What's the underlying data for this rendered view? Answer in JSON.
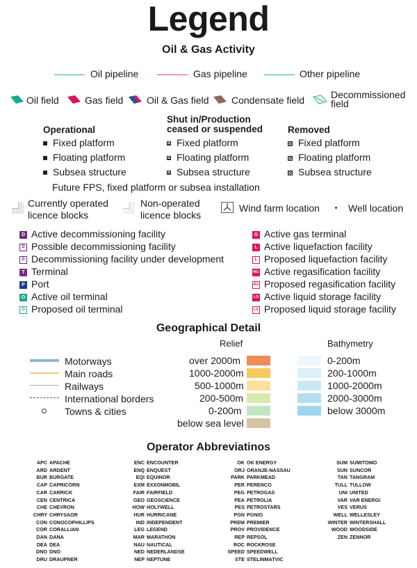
{
  "title": "Legend",
  "oil_gas_heading": "Oil & Gas Activity",
  "pipelines": [
    {
      "label": "Oil pipeline",
      "color": "#2ab5a5"
    },
    {
      "label": "Gas pipeline",
      "color": "#e0447a"
    },
    {
      "label": "Other pipeline",
      "color": "#2ab5a5"
    }
  ],
  "fields": [
    {
      "label": "Oil field",
      "color": "#1fa890"
    },
    {
      "label": "Gas field",
      "color": "#d9155d"
    },
    {
      "label": "Oil & Gas field",
      "color": "#7a3a8c"
    },
    {
      "label": "Condensate field",
      "color": "#8c6a5a"
    },
    {
      "label": "Decommissioned field",
      "color": "#1fa890"
    }
  ],
  "status_columns": [
    {
      "heading": "Operational",
      "items": [
        "Fixed platform",
        "Floating platform",
        "Subsea structure"
      ]
    },
    {
      "heading": "Shut in/Production ceased or suspended",
      "items": [
        "Fixed platform",
        "Floating platform",
        "Subsea structure"
      ]
    },
    {
      "heading": "Removed",
      "items": [
        "Fixed platform",
        "Floating platform",
        "Subsea structure"
      ]
    }
  ],
  "future_note": "Future FPS, fixed platform or subsea installation",
  "licence": {
    "current": "Currently operated licence blocks",
    "non_operated": "Non-operated licence blocks",
    "wind_farm": "Wind farm location",
    "well": "Well location"
  },
  "facilities_left": [
    {
      "code": "D",
      "label": "Active decommissioning facility",
      "color": "#6b2a7a",
      "outline": false
    },
    {
      "code": "D",
      "label": "Possible decommissioning facility",
      "color": "#6b2a7a",
      "outline": true
    },
    {
      "code": "D",
      "label": "Decommissioning facility under development",
      "color": "#6b2a7a",
      "outline": true
    },
    {
      "code": "T",
      "label": "Terminal",
      "color": "#7a2a8c",
      "outline": false
    },
    {
      "code": "P",
      "label": "Port",
      "color": "#1a3a8c",
      "outline": false
    },
    {
      "code": "O",
      "label": "Active oil terminal",
      "color": "#1fa890",
      "outline": false
    },
    {
      "code": "O",
      "label": "Proposed oil terminal",
      "color": "#1fa890",
      "outline": true
    }
  ],
  "facilities_right": [
    {
      "code": "G",
      "label": "Active gas terminal",
      "color": "#d9155d",
      "outline": false
    },
    {
      "code": "L",
      "label": "Active liquefaction facility",
      "color": "#d9155d",
      "outline": false
    },
    {
      "code": "L",
      "label": "Proposed liquefaction facility",
      "color": "#d9155d",
      "outline": true
    },
    {
      "code": "RG",
      "label": "Active regasification facility",
      "color": "#d9155d",
      "outline": false
    },
    {
      "code": "RG",
      "label": "Proposed regasification facility",
      "color": "#d9155d",
      "outline": true
    },
    {
      "code": "LS",
      "label": "Active liquid storage facility",
      "color": "#d9155d",
      "outline": false
    },
    {
      "code": "LS",
      "label": "Proposed liquid storage facility",
      "color": "#d9155d",
      "outline": true
    }
  ],
  "geo_heading": "Geographical Detail",
  "geo_features": [
    {
      "label": "Motorways",
      "color": "#8fb8d8"
    },
    {
      "label": "Main roads",
      "color": "#f2c97a"
    },
    {
      "label": "Railways",
      "color": "#aaaaaa"
    },
    {
      "label": "International borders",
      "color": "#555555"
    },
    {
      "label": "Towns & cities",
      "color": "#333333"
    }
  ],
  "relief_heading": "Relief",
  "relief": [
    {
      "label": "over 2000m",
      "color": "#f08a5a"
    },
    {
      "label": "1000-2000m",
      "color": "#f7c95e"
    },
    {
      "label": "500-1000m",
      "color": "#fbe09a"
    },
    {
      "label": "200-500m",
      "color": "#d9eab0"
    },
    {
      "label": "0-200m",
      "color": "#c3e4c0"
    },
    {
      "label": "below sea level",
      "color": "#d4c5a0"
    }
  ],
  "bathymetry_heading": "Bathymetry",
  "bathymetry": [
    {
      "label": "0-200m",
      "color": "#eef7fb"
    },
    {
      "label": "200-1000m",
      "color": "#dcf0f8"
    },
    {
      "label": "1000-2000m",
      "color": "#c9e8f5"
    },
    {
      "label": "2000-3000m",
      "color": "#b3def2"
    },
    {
      "label": "below 3000m",
      "color": "#a0d4ef"
    }
  ],
  "operator_heading": "Operator Abbreviatinos",
  "operators": [
    [
      [
        "APC",
        "APACHE"
      ],
      [
        "ARD",
        "ARDENT"
      ],
      [
        "BUR",
        "BURGATE"
      ],
      [
        "CAP",
        "CAPRICORN"
      ],
      [
        "CAR",
        "CARRICK"
      ],
      [
        "CEN",
        "CENTRICA"
      ],
      [
        "CHE",
        "CHEVRON"
      ],
      [
        "CHRY",
        "CHRYSAOR"
      ],
      [
        "CON",
        "CONOCOPHILLIPS"
      ],
      [
        "COR",
        "CORALLIAN"
      ],
      [
        "DAN",
        "DANA"
      ],
      [
        "DEA",
        "DEA"
      ],
      [
        "DNO",
        "DNO"
      ],
      [
        "DRU",
        "DRAUPNER"
      ]
    ],
    [
      [
        "ENC",
        "ENCOUNTER"
      ],
      [
        "ENQ",
        "ENQUEST"
      ],
      [
        "EQI",
        "EQUINOR"
      ],
      [
        "EXM",
        "EXXONMOBIL"
      ],
      [
        "FAIR",
        "FAIRFIELD"
      ],
      [
        "GEO",
        "GEOSCIENCE"
      ],
      [
        "HOW",
        "HOLYWELL"
      ],
      [
        "HUR",
        "HURRICANE"
      ],
      [
        "IND",
        "INDEPENDENT"
      ],
      [
        "LEG",
        "LEGEND"
      ],
      [
        "MAR",
        "MARATHON"
      ],
      [
        "NAU",
        "NAUTICAL"
      ],
      [
        "NED",
        "NEDERLANDSE"
      ],
      [
        "NEP",
        "NEPTUNE"
      ]
    ],
    [
      [
        "OK",
        "OK ENERGY"
      ],
      [
        "ORJ",
        "ORANJE-NASSAU"
      ],
      [
        "PARK",
        "PARKMEAD"
      ],
      [
        "PER",
        "PERENCO"
      ],
      [
        "PEG",
        "PETROGAS"
      ],
      [
        "PEA",
        "PETROLIA"
      ],
      [
        "PES",
        "PETROSTARS"
      ],
      [
        "PGN",
        "PGNIG"
      ],
      [
        "PREM",
        "PREMIER"
      ],
      [
        "PROV",
        "PROVIDENCE"
      ],
      [
        "REP",
        "REPSOL"
      ],
      [
        "ROC",
        "ROCKROSE"
      ],
      [
        "SPEED",
        "SPEEDWELL"
      ],
      [
        "STE",
        "STELINMATVIC"
      ]
    ],
    [
      [
        "SUM",
        "SUMITOMO"
      ],
      [
        "SUN",
        "SUNCOR"
      ],
      [
        "TAN",
        "TANGRAM"
      ],
      [
        "TULL",
        "TULLOW"
      ],
      [
        "UNI",
        "UNITED"
      ],
      [
        "VAR",
        "VAR ENERGI"
      ],
      [
        "VES",
        "VERUS"
      ],
      [
        "WELL",
        "WELLESLEY"
      ],
      [
        "WINTER",
        "WINTERSHALL"
      ],
      [
        "WOOD",
        "WOODSIDE"
      ],
      [
        "ZEN",
        "ZENNOR"
      ]
    ]
  ]
}
